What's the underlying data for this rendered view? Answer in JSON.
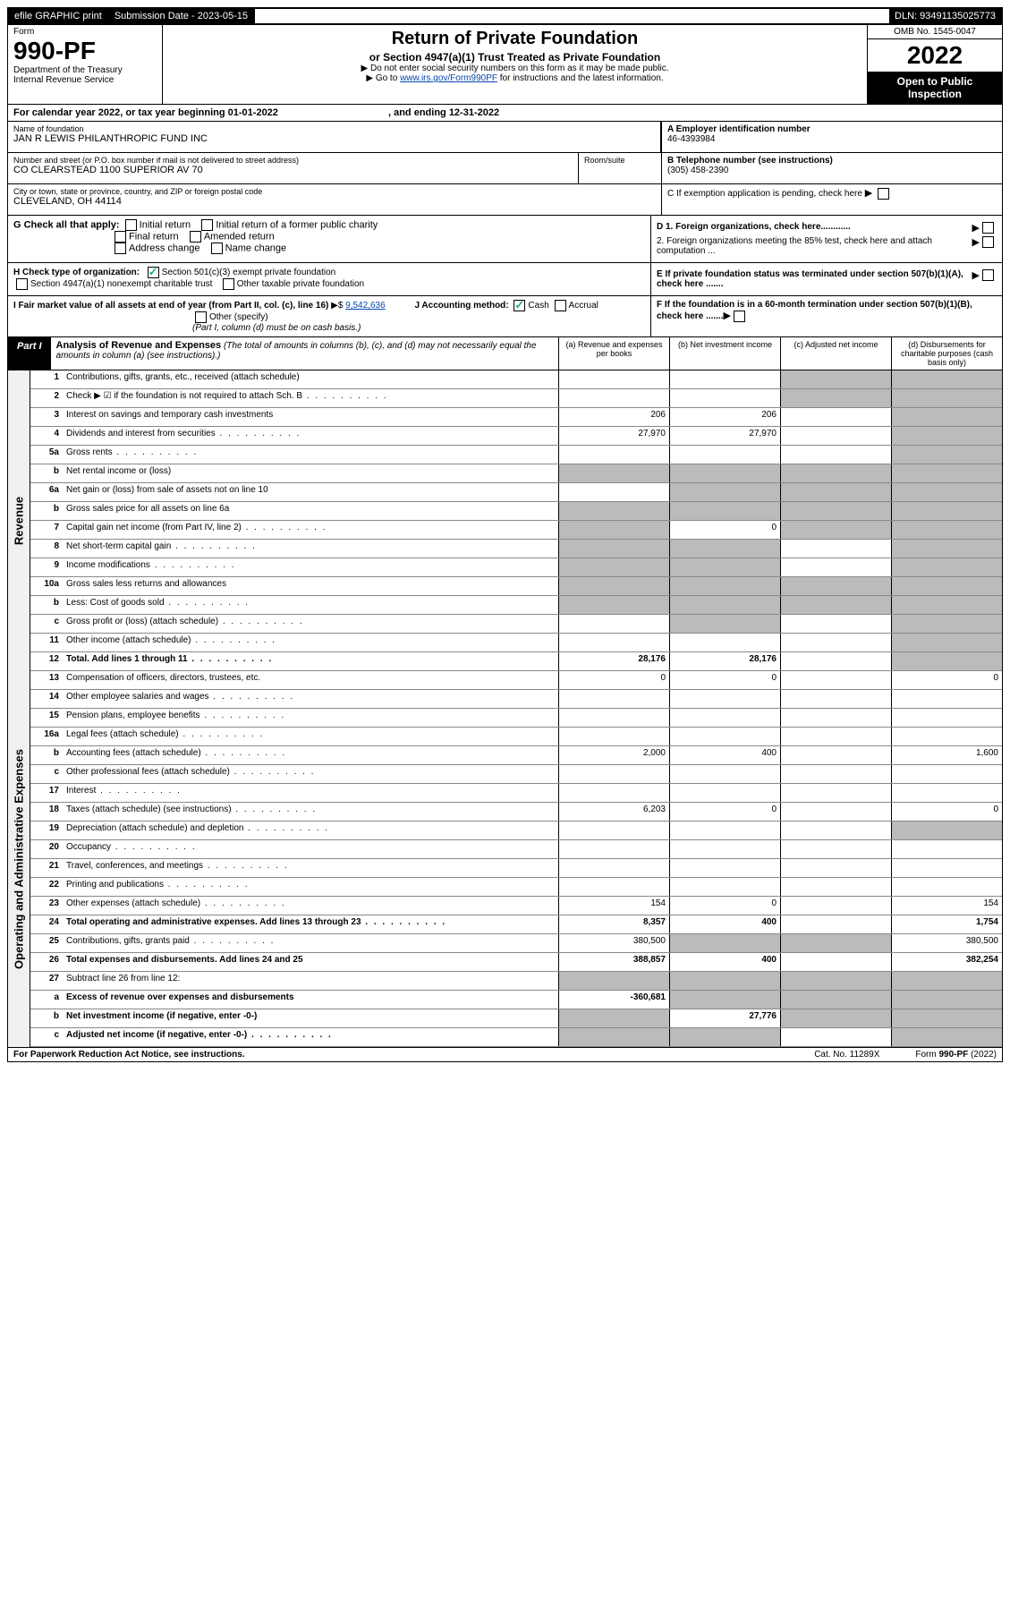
{
  "top": {
    "efile": "efile GRAPHIC print",
    "submission": "Submission Date - 2023-05-15",
    "dln": "DLN: 93491135025773"
  },
  "header": {
    "form": "Form",
    "number": "990-PF",
    "dept": "Department of the Treasury",
    "irs": "Internal Revenue Service",
    "title": "Return of Private Foundation",
    "subtitle": "or Section 4947(a)(1) Trust Treated as Private Foundation",
    "instr1": "▶ Do not enter social security numbers on this form as it may be made public.",
    "instr2_pre": "▶ Go to ",
    "instr2_link": "www.irs.gov/Form990PF",
    "instr2_post": " for instructions and the latest information.",
    "omb": "OMB No. 1545-0047",
    "year": "2022",
    "open": "Open to Public Inspection"
  },
  "calyear": "For calendar year 2022, or tax year beginning 01-01-2022",
  "calyear_end": ", and ending 12-31-2022",
  "info": {
    "name_label": "Name of foundation",
    "name": "JAN R LEWIS PHILANTHROPIC FUND INC",
    "addr_label": "Number and street (or P.O. box number if mail is not delivered to street address)",
    "addr": "CO CLEARSTEAD 1100 SUPERIOR AV 70",
    "room_label": "Room/suite",
    "city_label": "City or town, state or province, country, and ZIP or foreign postal code",
    "city": "CLEVELAND, OH  44114",
    "ein_label": "A Employer identification number",
    "ein": "46-4393984",
    "tel_label": "B Telephone number (see instructions)",
    "tel": "(305) 458-2390",
    "c": "C If exemption application is pending, check here",
    "d1": "D 1. Foreign organizations, check here............",
    "d2": "2. Foreign organizations meeting the 85% test, check here and attach computation ...",
    "e": "E  If private foundation status was terminated under section 507(b)(1)(A), check here .......",
    "f": "F  If the foundation is in a 60-month termination under section 507(b)(1)(B), check here .......",
    "g_label": "G Check all that apply:",
    "g_opts": [
      "Initial return",
      "Initial return of a former public charity",
      "Final return",
      "Amended return",
      "Address change",
      "Name change"
    ],
    "h_label": "H Check type of organization:",
    "h_opts": [
      "Section 501(c)(3) exempt private foundation",
      "Section 4947(a)(1) nonexempt charitable trust",
      "Other taxable private foundation"
    ],
    "i_label": "I Fair market value of all assets at end of year (from Part II, col. (c), line 16)",
    "i_val": "9,542,636",
    "j_label": "J Accounting method:",
    "j_opts": [
      "Cash",
      "Accrual",
      "Other (specify)"
    ],
    "j_note": "(Part I, column (d) must be on cash basis.)"
  },
  "part1": {
    "label": "Part I",
    "title": "Analysis of Revenue and Expenses",
    "note": "(The total of amounts in columns (b), (c), and (d) may not necessarily equal the amounts in column (a) (see instructions).)",
    "cols": [
      "(a)  Revenue and expenses per books",
      "(b)  Net investment income",
      "(c)  Adjusted net income",
      "(d)  Disbursements for charitable purposes (cash basis only)"
    ]
  },
  "sections": {
    "revenue": "Revenue",
    "expenses": "Operating and Administrative Expenses"
  },
  "rows": [
    {
      "n": "1",
      "d": "Contributions, gifts, grants, etc., received (attach schedule)",
      "a": "",
      "b": "",
      "c": "g",
      "e": "g"
    },
    {
      "n": "2",
      "d": "Check ▶ ☑ if the foundation is not required to attach Sch. B",
      "a": "",
      "b": "",
      "c": "g",
      "e": "g",
      "dots": true
    },
    {
      "n": "3",
      "d": "Interest on savings and temporary cash investments",
      "a": "206",
      "b": "206",
      "c": "",
      "e": "g"
    },
    {
      "n": "4",
      "d": "Dividends and interest from securities",
      "a": "27,970",
      "b": "27,970",
      "c": "",
      "e": "g",
      "dots": true
    },
    {
      "n": "5a",
      "d": "Gross rents",
      "a": "",
      "b": "",
      "c": "",
      "e": "g",
      "dots": true
    },
    {
      "n": "b",
      "d": "Net rental income or (loss)",
      "a": "g",
      "b": "g",
      "c": "g",
      "e": "g"
    },
    {
      "n": "6a",
      "d": "Net gain or (loss) from sale of assets not on line 10",
      "a": "",
      "b": "g",
      "c": "g",
      "e": "g"
    },
    {
      "n": "b",
      "d": "Gross sales price for all assets on line 6a",
      "a": "g",
      "b": "g",
      "c": "g",
      "e": "g"
    },
    {
      "n": "7",
      "d": "Capital gain net income (from Part IV, line 2)",
      "a": "g",
      "b": "0",
      "c": "g",
      "e": "g",
      "dots": true
    },
    {
      "n": "8",
      "d": "Net short-term capital gain",
      "a": "g",
      "b": "g",
      "c": "",
      "e": "g",
      "dots": true
    },
    {
      "n": "9",
      "d": "Income modifications",
      "a": "g",
      "b": "g",
      "c": "",
      "e": "g",
      "dots": true
    },
    {
      "n": "10a",
      "d": "Gross sales less returns and allowances",
      "a": "g",
      "b": "g",
      "c": "g",
      "e": "g"
    },
    {
      "n": "b",
      "d": "Less: Cost of goods sold",
      "a": "g",
      "b": "g",
      "c": "g",
      "e": "g",
      "dots": true
    },
    {
      "n": "c",
      "d": "Gross profit or (loss) (attach schedule)",
      "a": "",
      "b": "g",
      "c": "",
      "e": "g",
      "dots": true
    },
    {
      "n": "11",
      "d": "Other income (attach schedule)",
      "a": "",
      "b": "",
      "c": "",
      "e": "g",
      "dots": true
    },
    {
      "n": "12",
      "d": "Total. Add lines 1 through 11",
      "a": "28,176",
      "b": "28,176",
      "c": "",
      "e": "g",
      "bold": true,
      "dots": true
    }
  ],
  "exp_rows": [
    {
      "n": "13",
      "d": "Compensation of officers, directors, trustees, etc.",
      "a": "0",
      "b": "0",
      "c": "",
      "e": "0"
    },
    {
      "n": "14",
      "d": "Other employee salaries and wages",
      "a": "",
      "b": "",
      "c": "",
      "e": "",
      "dots": true
    },
    {
      "n": "15",
      "d": "Pension plans, employee benefits",
      "a": "",
      "b": "",
      "c": "",
      "e": "",
      "dots": true
    },
    {
      "n": "16a",
      "d": "Legal fees (attach schedule)",
      "a": "",
      "b": "",
      "c": "",
      "e": "",
      "dots": true
    },
    {
      "n": "b",
      "d": "Accounting fees (attach schedule)",
      "a": "2,000",
      "b": "400",
      "c": "",
      "e": "1,600",
      "dots": true
    },
    {
      "n": "c",
      "d": "Other professional fees (attach schedule)",
      "a": "",
      "b": "",
      "c": "",
      "e": "",
      "dots": true
    },
    {
      "n": "17",
      "d": "Interest",
      "a": "",
      "b": "",
      "c": "",
      "e": "",
      "dots": true
    },
    {
      "n": "18",
      "d": "Taxes (attach schedule) (see instructions)",
      "a": "6,203",
      "b": "0",
      "c": "",
      "e": "0",
      "dots": true
    },
    {
      "n": "19",
      "d": "Depreciation (attach schedule) and depletion",
      "a": "",
      "b": "",
      "c": "",
      "e": "g",
      "dots": true
    },
    {
      "n": "20",
      "d": "Occupancy",
      "a": "",
      "b": "",
      "c": "",
      "e": "",
      "dots": true
    },
    {
      "n": "21",
      "d": "Travel, conferences, and meetings",
      "a": "",
      "b": "",
      "c": "",
      "e": "",
      "dots": true
    },
    {
      "n": "22",
      "d": "Printing and publications",
      "a": "",
      "b": "",
      "c": "",
      "e": "",
      "dots": true
    },
    {
      "n": "23",
      "d": "Other expenses (attach schedule)",
      "a": "154",
      "b": "0",
      "c": "",
      "e": "154",
      "dots": true
    },
    {
      "n": "24",
      "d": "Total operating and administrative expenses. Add lines 13 through 23",
      "a": "8,357",
      "b": "400",
      "c": "",
      "e": "1,754",
      "bold": true,
      "dots": true
    },
    {
      "n": "25",
      "d": "Contributions, gifts, grants paid",
      "a": "380,500",
      "b": "g",
      "c": "g",
      "e": "380,500",
      "dots": true
    },
    {
      "n": "26",
      "d": "Total expenses and disbursements. Add lines 24 and 25",
      "a": "388,857",
      "b": "400",
      "c": "",
      "e": "382,254",
      "bold": true
    },
    {
      "n": "27",
      "d": "Subtract line 26 from line 12:",
      "a": "g",
      "b": "g",
      "c": "g",
      "e": "g"
    },
    {
      "n": "a",
      "d": "Excess of revenue over expenses and disbursements",
      "a": "-360,681",
      "b": "g",
      "c": "g",
      "e": "g",
      "bold": true
    },
    {
      "n": "b",
      "d": "Net investment income (if negative, enter -0-)",
      "a": "g",
      "b": "27,776",
      "c": "g",
      "e": "g",
      "bold": true
    },
    {
      "n": "c",
      "d": "Adjusted net income (if negative, enter -0-)",
      "a": "g",
      "b": "g",
      "c": "",
      "e": "g",
      "bold": true,
      "dots": true
    }
  ],
  "footer": {
    "left": "For Paperwork Reduction Act Notice, see instructions.",
    "mid": "Cat. No. 11289X",
    "right": "Form 990-PF (2022)"
  }
}
